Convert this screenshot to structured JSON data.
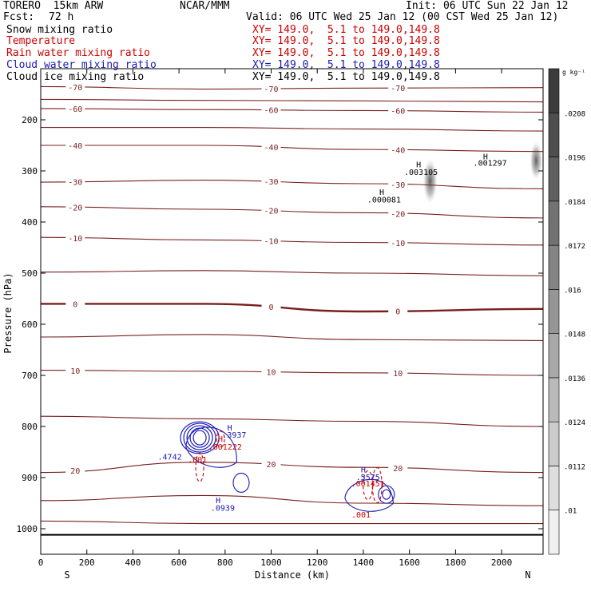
{
  "header": {
    "model": "TORERO  15km ARW",
    "org": "NCAR/MMM",
    "init": "Init: 06 UTC Sun 22 Jan 12",
    "fcst_label": "Fcst:",
    "fcst_value": "72 h",
    "valid": "Valid: 06 UTC Wed 25 Jan 12 (00 CST Wed 25 Jan 12)"
  },
  "fields": [
    {
      "name": "Snow mixing ratio",
      "xy": "XY= 149.0,  5.1 to 149.0,149.8",
      "color": "#000000"
    },
    {
      "name": "Temperature",
      "xy": "XY= 149.0,  5.1 to 149.0,149.8",
      "color": "#cc0000"
    },
    {
      "name": "Rain water mixing ratio",
      "xy": "XY= 149.0,  5.1 to 149.0,149.8",
      "color": "#cc0000"
    },
    {
      "name": "Cloud water mixing ratio",
      "xy": "XY= 149.0,  5.1 to 149.0,149.8",
      "color": "#1a1ab4"
    },
    {
      "name": "Cloud ice mixing ratio",
      "xy": "XY= 149.0,  5.1 to 149.0,149.8",
      "color": "#000000"
    }
  ],
  "chart_data": {
    "type": "line",
    "xlabel": "Distance (km)",
    "ylabel": "Pressure (hPa)",
    "xlim": [
      0,
      2180
    ],
    "ylim": [
      100,
      1050
    ],
    "x_ticks": [
      0,
      200,
      400,
      600,
      800,
      1000,
      1200,
      1400,
      1600,
      1800,
      2000
    ],
    "y_ticks": [
      200,
      300,
      400,
      500,
      600,
      700,
      800,
      900,
      1000
    ],
    "left_end_label": "S",
    "right_end_label": "N",
    "colorbar": {
      "unit": "g kg⁻¹",
      "levels": [
        ".01",
        ".0112",
        ".0124",
        ".0136",
        ".0148",
        ".016",
        ".0172",
        ".0184",
        ".0196",
        ".0208"
      ]
    },
    "temperature_contours": [
      {
        "label": "-70",
        "p": [
          135,
          140,
          138,
          137
        ]
      },
      {
        "label": "",
        "p": [
          160,
          162,
          163,
          165
        ]
      },
      {
        "label": "-60",
        "p": [
          178,
          180,
          182,
          185
        ]
      },
      {
        "label": "",
        "p": [
          215,
          215,
          218,
          222
        ]
      },
      {
        "label": "-40",
        "p": [
          250,
          250,
          258,
          262
        ]
      },
      {
        "label": "-30",
        "p": [
          322,
          318,
          325,
          335
        ]
      },
      {
        "label": "-20",
        "p": [
          370,
          375,
          382,
          392
        ]
      },
      {
        "label": "-10",
        "p": [
          430,
          435,
          440,
          445
        ]
      },
      {
        "label": "",
        "p": [
          498,
          495,
          500,
          505
        ]
      },
      {
        "label": "0",
        "p": [
          560,
          560,
          575,
          570
        ]
      },
      {
        "label": "",
        "p": [
          625,
          620,
          630,
          632
        ]
      },
      {
        "label": "10",
        "p": [
          690,
          692,
          695,
          700
        ]
      },
      {
        "label": "",
        "p": [
          780,
          785,
          790,
          800
        ]
      },
      {
        "label": "20",
        "p": [
          890,
          870,
          880,
          890
        ]
      },
      {
        "label": "",
        "p": [
          945,
          935,
          950,
          955
        ]
      },
      {
        "label": "",
        "p": [
          985,
          990,
          990,
          990
        ]
      }
    ],
    "annotations": [
      {
        "text": "H",
        "x": 1640,
        "p": 293
      },
      {
        "text": ".003105",
        "x": 1650,
        "p": 308
      },
      {
        "text": "H",
        "x": 1480,
        "p": 347
      },
      {
        "text": ".000081",
        "x": 1490,
        "p": 362
      },
      {
        "text": "H",
        "x": 1930,
        "p": 277
      },
      {
        "text": ".001297",
        "x": 1950,
        "p": 290
      },
      {
        "text": "H",
        "x": 820,
        "p": 808
      },
      {
        "text": ".3937",
        "x": 840,
        "p": 822
      },
      {
        "text": "H",
        "x": 780,
        "p": 830
      },
      {
        "text": ".001222",
        "x": 800,
        "p": 845
      },
      {
        "text": ".4742",
        "x": 560,
        "p": 865
      },
      {
        "text": ".001",
        "x": 680,
        "p": 870
      },
      {
        "text": "H",
        "x": 770,
        "p": 950
      },
      {
        "text": ".0939",
        "x": 790,
        "p": 965
      },
      {
        "text": "H",
        "x": 1400,
        "p": 890
      },
      {
        "text": ".5575",
        "x": 1420,
        "p": 905
      },
      {
        "text": ".001451",
        "x": 1420,
        "p": 917
      },
      {
        "text": ".001",
        "x": 1390,
        "p": 978
      }
    ]
  }
}
